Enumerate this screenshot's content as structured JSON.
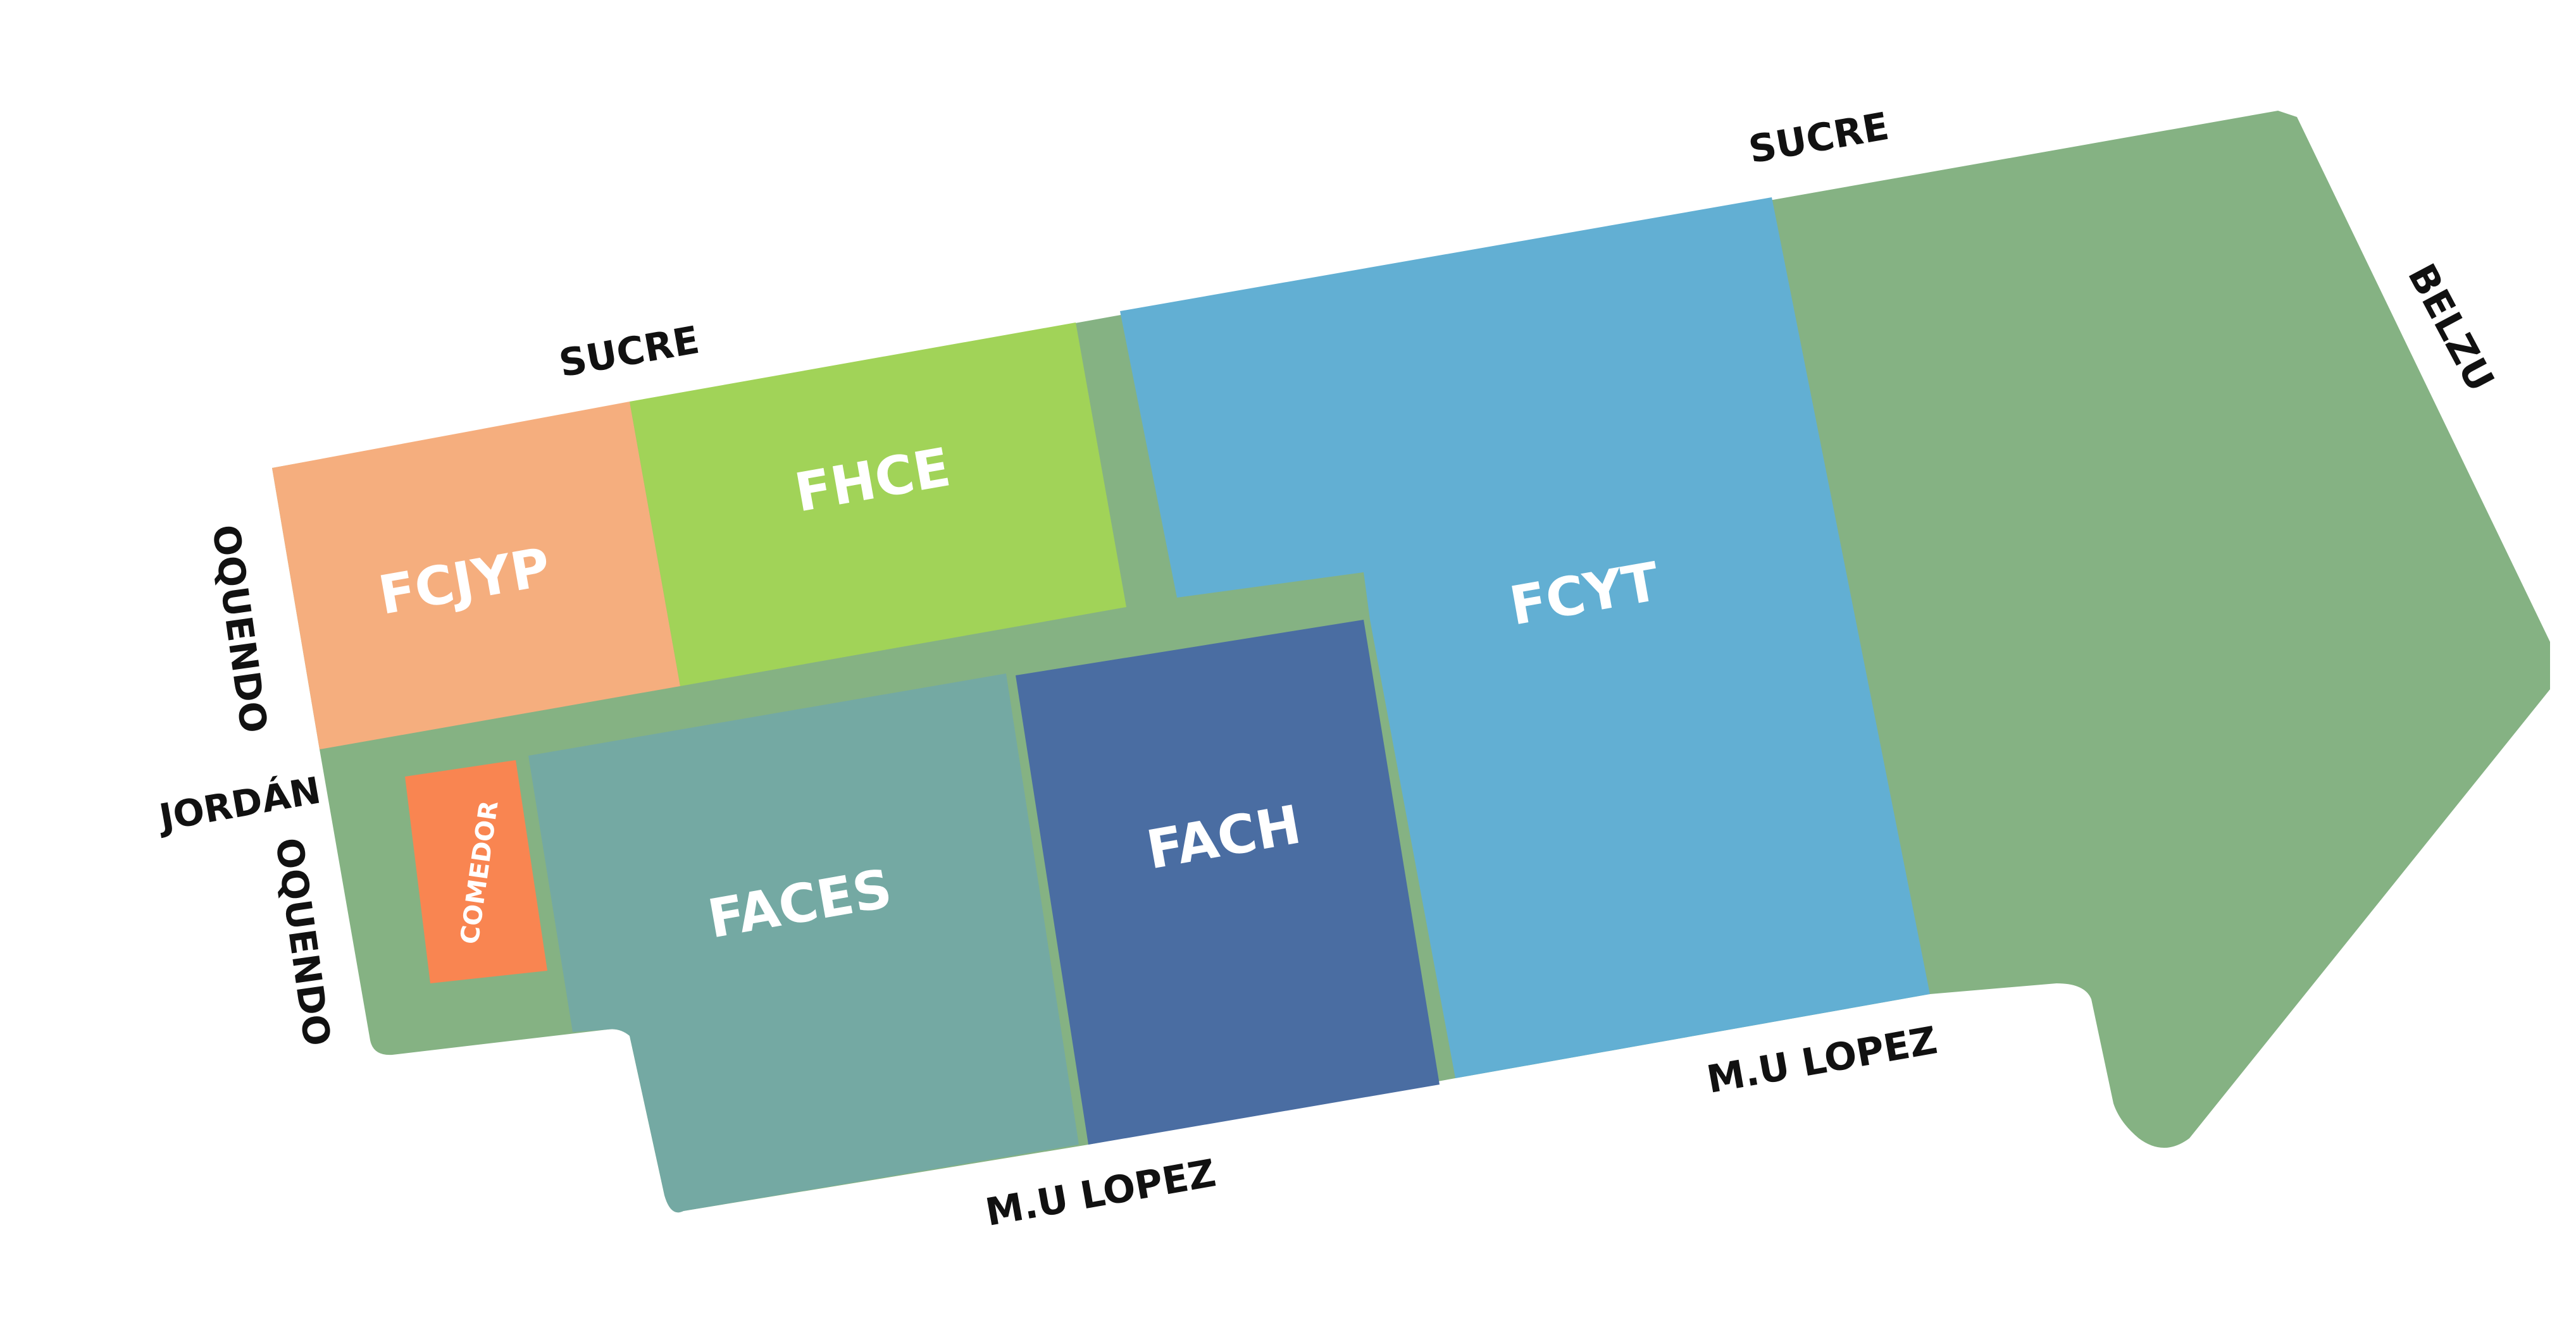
{
  "zones": {
    "fcjyp": {
      "label": "FCJYP",
      "color": "#F5AE7E"
    },
    "fhce": {
      "label": "FHCE",
      "color": "#A1D358"
    },
    "fcyt": {
      "label": "FCYT",
      "color": "#62AFD3"
    },
    "faces": {
      "label": "FACES",
      "color": "#74A9A3"
    },
    "fach": {
      "label": "FACH",
      "color": "#4A6DA2"
    },
    "comedor": {
      "label": "COMEDOR",
      "color": "#F98551"
    },
    "campus_ground": {
      "color": "#85B283"
    }
  },
  "streets": {
    "sucre_left": "SUCRE",
    "sucre_right": "SUCRE",
    "belzu": "BELZU",
    "oquendo_top": "OQUENDO",
    "jordan": "JORDÁN",
    "oquendo_bottom": "OQUENDO",
    "mu_lopez_center": "M.U LOPEZ",
    "mu_lopez_right": "M.U LOPEZ"
  }
}
